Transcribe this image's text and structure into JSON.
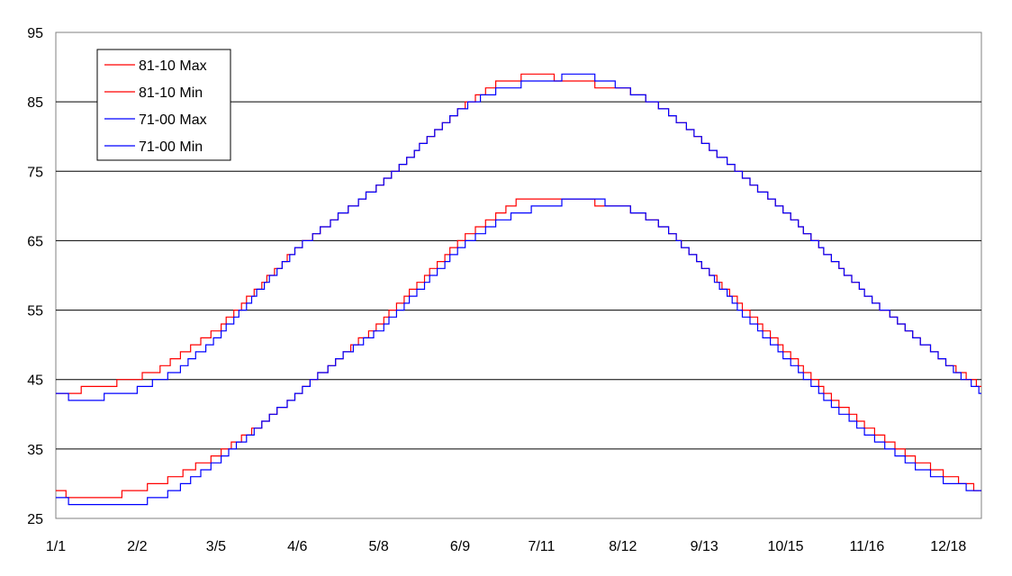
{
  "chart_data": {
    "type": "line",
    "title": "",
    "xlabel": "",
    "ylabel": "",
    "ylim": [
      25,
      95
    ],
    "yticks": [
      25,
      35,
      45,
      55,
      65,
      75,
      85,
      95
    ],
    "xticks": [
      "1/1",
      "2/2",
      "3/5",
      "4/6",
      "5/8",
      "6/9",
      "7/11",
      "8/12",
      "9/13",
      "10/15",
      "11/16",
      "12/18"
    ],
    "xtick_days": [
      1,
      33,
      64,
      96,
      128,
      160,
      192,
      224,
      256,
      288,
      320,
      352
    ],
    "x_day_range": [
      1,
      365
    ],
    "grid": "horizontal",
    "legend_position": "top-left",
    "series": [
      {
        "name": "81-10 Max",
        "color": "#ff0000",
        "x": [
          1,
          20,
          40,
          64,
          96,
          128,
          160,
          176,
          192,
          200,
          224,
          240,
          256,
          288,
          320,
          352,
          365
        ],
        "values": [
          43,
          44,
          46,
          52,
          64,
          73,
          84,
          88,
          89,
          88,
          87,
          84,
          79,
          69,
          57,
          47,
          44
        ]
      },
      {
        "name": "81-10 Min",
        "color": "#ff0000",
        "x": [
          1,
          8,
          20,
          33,
          48,
          64,
          80,
          96,
          112,
          128,
          144,
          160,
          176,
          184,
          200,
          224,
          240,
          256,
          272,
          288,
          304,
          320,
          336,
          352,
          365
        ],
        "values": [
          29,
          28,
          28,
          29,
          31,
          34,
          38,
          43,
          48,
          53,
          59,
          65,
          69,
          71,
          71,
          70,
          67,
          61,
          55,
          49,
          43,
          38,
          34,
          31,
          29
        ]
      },
      {
        "name": "71-00 Max",
        "color": "#0000ff",
        "x": [
          1,
          10,
          30,
          48,
          64,
          96,
          128,
          160,
          176,
          192,
          208,
          224,
          240,
          256,
          288,
          320,
          352,
          365
        ],
        "values": [
          43,
          42,
          43,
          46,
          51,
          64,
          73,
          84,
          87,
          88,
          89,
          87,
          84,
          79,
          69,
          57,
          47,
          43
        ]
      },
      {
        "name": "71-00 Min",
        "color": "#0000ff",
        "x": [
          1,
          10,
          20,
          33,
          48,
          64,
          80,
          96,
          112,
          128,
          144,
          160,
          176,
          192,
          208,
          224,
          240,
          256,
          272,
          288,
          304,
          320,
          336,
          352,
          365
        ],
        "values": [
          28,
          27,
          27,
          27,
          29,
          33,
          38,
          43,
          48,
          52,
          58,
          64,
          68,
          70,
          71,
          70,
          67,
          61,
          54,
          48,
          42,
          37,
          33,
          30,
          29
        ]
      }
    ]
  }
}
